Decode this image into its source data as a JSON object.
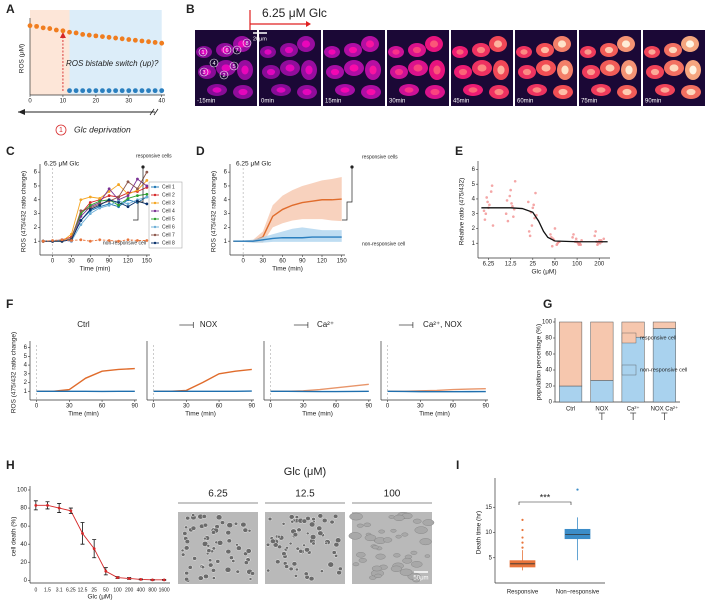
{
  "panel_labels": [
    "A",
    "B",
    "C",
    "D",
    "E",
    "F",
    "G",
    "H",
    "I"
  ],
  "timelapse": {
    "stimulus": "6.25 μM Glc",
    "scale_bar": "20μm",
    "frames": [
      "-15min",
      "0min",
      "15min",
      "30min",
      "45min",
      "60min",
      "75min",
      "90min"
    ],
    "cell_ids": [
      "1",
      "2",
      "3",
      "4",
      "5",
      "6",
      "7",
      "8"
    ]
  },
  "micrographs": {
    "axis_title": "Glc (μM)",
    "conditions": [
      "6.25",
      "12.5",
      "100"
    ],
    "scale_bar": "50μm"
  },
  "chart_data": [
    {
      "type": "line",
      "ylabel": "ROS (μM)",
      "markers": true,
      "annotations": [
        "ROS bistable switch (up)?",
        "Glc deprivation",
        "1"
      ],
      "regions": [
        {
          "from": 0,
          "to": 12,
          "color": "#fde6d8"
        },
        {
          "from": 12,
          "to": 40,
          "color": "#dcedf9"
        }
      ],
      "switch_x": 10,
      "x": [
        0,
        2,
        4,
        6,
        8,
        10,
        12,
        14,
        16,
        18,
        20,
        22,
        24,
        26,
        28,
        30,
        32,
        34,
        36,
        38,
        40
      ],
      "series": [
        {
          "color": "#f07d1f",
          "values": [
            0.95,
            0.94,
            0.92,
            0.91,
            0.89,
            0.88,
            0.86,
            0.85,
            0.83,
            0.82,
            0.81,
            0.8,
            0.79,
            0.78,
            0.77,
            0.76,
            0.75,
            0.74,
            0.73,
            0.72,
            0.71
          ]
        },
        {
          "color": "#2a7fbf",
          "values": [
            null,
            null,
            null,
            null,
            null,
            null,
            0.06,
            0.06,
            0.06,
            0.06,
            0.06,
            0.06,
            0.06,
            0.06,
            0.06,
            0.06,
            0.06,
            0.06,
            0.06,
            0.06,
            0.06
          ]
        }
      ],
      "xlim": [
        0,
        41
      ],
      "xticks": [
        0,
        10,
        20,
        30,
        40
      ],
      "ylim": [
        0,
        1
      ]
    },
    {
      "type": "line",
      "ylabel": "ROS (475/432 ratio change)",
      "xlabel": "Time (min)",
      "markers": true,
      "stimulus": 0,
      "annotations": [
        "6.25 μM Glc",
        "responsive cells",
        "non-responsive cell"
      ],
      "legend": "right",
      "x": [
        -15,
        0,
        15,
        30,
        45,
        60,
        75,
        90,
        105,
        120,
        135,
        150
      ],
      "series": [
        {
          "name": "Cell 1",
          "color": "#1f77b4",
          "values": [
            1,
            1,
            1,
            1.1,
            2.5,
            3.2,
            3.5,
            3.7,
            3.5,
            4.0,
            3.8,
            4.2
          ]
        },
        {
          "name": "Cell 2",
          "color": "#d62728",
          "values": [
            1,
            1,
            1.1,
            1.3,
            3.0,
            3.8,
            4.0,
            4.3,
            4.2,
            4.5,
            4.6,
            4.9
          ]
        },
        {
          "name": "Cell 3",
          "color": "#f5a623",
          "values": [
            1,
            1,
            1,
            1.5,
            4.0,
            4.2,
            4.1,
            4.6,
            5.1,
            4.4,
            4.7,
            5.4
          ]
        },
        {
          "name": "Cell 4",
          "color": "#7b3294",
          "values": [
            1,
            1,
            1.1,
            1.0,
            2.8,
            3.5,
            3.8,
            4.8,
            4.0,
            4.3,
            5.5,
            5.0
          ]
        },
        {
          "name": "Cell 5",
          "color": "#2ca02c",
          "values": [
            1,
            1,
            1,
            1.2,
            3.0,
            3.6,
            3.9,
            4.0,
            3.6,
            4.1,
            4.3,
            4.4
          ]
        },
        {
          "name": "Cell 6",
          "color": "#6baed6",
          "values": [
            1,
            1,
            1.1,
            1.0,
            2.2,
            3.0,
            3.4,
            3.6,
            3.9,
            3.7,
            4.0,
            4.2
          ]
        },
        {
          "name": "Cell 7",
          "color": "#8c564b",
          "values": [
            1,
            1,
            1.0,
            1.2,
            3.2,
            3.4,
            3.7,
            3.9,
            4.2,
            5.3,
            4.8,
            6.0
          ]
        },
        {
          "name": "Cell 8",
          "color": "#08306b",
          "values": [
            1,
            1,
            1,
            1.1,
            2.5,
            3.3,
            3.6,
            4.0,
            3.8,
            3.5,
            3.9,
            3.7
          ]
        },
        {
          "color": "#e8743b",
          "linestyle": "dashed",
          "values": [
            1,
            1.05,
            1.1,
            1.05,
            1.1,
            1.0,
            1.1,
            1.05,
            1.0,
            1.1,
            1.05,
            1.05
          ]
        }
      ],
      "xlim": [
        -20,
        155
      ],
      "xticks": [
        0,
        30,
        60,
        90,
        120,
        150
      ],
      "ylim": [
        0,
        6.3
      ],
      "yticks": [
        1,
        2,
        3,
        4,
        5,
        6
      ]
    },
    {
      "type": "line",
      "ylabel": "ROS (475/432 ratio change)",
      "xlabel": "Time (min)",
      "stimulus": 0,
      "annotations": [
        "6.25 μM Glc",
        "responsive cells",
        "non-responsive cell"
      ],
      "x": [
        -15,
        0,
        15,
        30,
        45,
        60,
        75,
        90,
        105,
        120,
        135,
        150
      ],
      "series": [
        {
          "color": "#e06c2c",
          "band_color": "#f6c3a8",
          "values": [
            1,
            1,
            1,
            1.3,
            2.8,
            3.3,
            3.6,
            3.8,
            3.9,
            4.0,
            4.0,
            4.05
          ],
          "upper": [
            1,
            1.05,
            1.1,
            1.7,
            3.6,
            4.3,
            4.7,
            5.0,
            5.2,
            5.4,
            5.5,
            5.65
          ],
          "lower": [
            1,
            0.95,
            0.9,
            0.9,
            2.0,
            2.3,
            2.5,
            2.6,
            2.6,
            2.6,
            2.5,
            2.45
          ]
        },
        {
          "color": "#2a7fbf",
          "band_color": "#a9d2ee",
          "values": [
            1,
            1,
            1,
            1.1,
            1.2,
            1.25,
            1.25,
            1.25,
            1.3,
            1.3,
            1.3,
            1.3
          ],
          "upper": [
            1,
            1.05,
            1.1,
            1.3,
            1.5,
            1.7,
            1.9,
            2.0,
            1.9,
            1.8,
            1.8,
            1.8
          ],
          "lower": [
            1,
            0.95,
            0.9,
            0.9,
            0.95,
            0.95,
            0.95,
            0.95,
            0.95,
            0.95,
            0.95,
            0.95
          ]
        }
      ],
      "xlim": [
        -20,
        155
      ],
      "xticks": [
        0,
        30,
        60,
        90,
        120,
        150
      ],
      "ylim": [
        0,
        6.3
      ],
      "yticks": [
        1,
        2,
        3,
        4,
        5,
        6
      ]
    },
    {
      "type": "scatter",
      "ylabel": "Relative ratio (475/432)",
      "xlabel": "Glc (μM)",
      "xscale": "log",
      "color": "#f08080",
      "x": [
        6.25,
        6.25,
        6.25,
        6.25,
        6.25,
        6.25,
        6.25,
        6.25,
        6.25,
        6.25,
        12.5,
        12.5,
        12.5,
        12.5,
        12.5,
        12.5,
        12.5,
        12.5,
        12.5,
        12.5,
        25,
        25,
        25,
        25,
        25,
        25,
        25,
        25,
        25,
        25,
        50,
        50,
        50,
        50,
        50,
        50,
        50,
        50,
        50,
        50,
        100,
        100,
        100,
        100,
        100,
        100,
        100,
        100,
        100,
        100,
        200,
        200,
        200,
        200,
        200,
        200,
        200,
        200,
        200,
        200
      ],
      "values": [
        3.2,
        3.8,
        4.5,
        2.6,
        3.4,
        4.9,
        3.0,
        3.6,
        2.2,
        4.1,
        3.5,
        3.0,
        4.2,
        2.8,
        3.9,
        4.6,
        3.3,
        2.5,
        3.7,
        5.2,
        3.1,
        2.7,
        3.8,
        2.2,
        4.4,
        1.8,
        3.4,
        2.9,
        1.5,
        3.6,
        1.1,
        1.3,
        0.9,
        1.6,
        1.2,
        1.0,
        1.4,
        2.0,
        1.1,
        0.8,
        1.0,
        1.2,
        1.1,
        0.9,
        1.4,
        1.3,
        1.0,
        1.6,
        1.1,
        0.9,
        1.1,
        1.0,
        1.3,
        0.9,
        1.2,
        1.5,
        1.0,
        1.1,
        1.8,
        1.2
      ],
      "fit": {
        "color": "#111111",
        "x": [
          5,
          6.25,
          12.5,
          18,
          25,
          30,
          35,
          40,
          50,
          100,
          200,
          260
        ],
        "values": [
          3.4,
          3.4,
          3.4,
          3.35,
          3.1,
          2.5,
          1.8,
          1.4,
          1.15,
          1.1,
          1.1,
          1.1
        ]
      },
      "xlim": [
        4.5,
        280
      ],
      "xticks": [
        6.25,
        12.5,
        25,
        50,
        100,
        200
      ],
      "ylim": [
        0,
        6.3
      ],
      "yticks": [
        1,
        2,
        3,
        4,
        5,
        6
      ]
    },
    {
      "type": "line",
      "title": "Ctrl",
      "inhibitor": false,
      "ylabel": "ROS (475/432 ratio change)",
      "xlabel": "Time (min)",
      "stimulus": 0,
      "x": [
        0,
        15,
        30,
        45,
        60,
        75,
        90
      ],
      "series": [
        {
          "color": "#e06c2c",
          "values": [
            1,
            1,
            1.2,
            2.5,
            3.3,
            3.5,
            3.6
          ]
        },
        {
          "color": "#1f6fae",
          "values": [
            1,
            1,
            1,
            1,
            0.98,
            1,
            1
          ]
        }
      ],
      "xlim": [
        -6,
        92
      ],
      "xticks": [
        0,
        30,
        60,
        90
      ],
      "ylim": [
        0,
        6.3
      ],
      "yticks": [
        1,
        2,
        3,
        4,
        5,
        6
      ]
    },
    {
      "type": "line",
      "title": "NOX",
      "inhibitor": true,
      "xlabel": "Time (min)",
      "stimulus": 0,
      "x": [
        0,
        15,
        30,
        45,
        60,
        75,
        90
      ],
      "series": [
        {
          "color": "#e06c2c",
          "values": [
            1,
            1,
            1.1,
            2.0,
            3.0,
            3.3,
            3.5
          ]
        },
        {
          "color": "#1f6fae",
          "values": [
            1,
            1,
            1,
            1,
            1,
            1,
            1.02
          ]
        }
      ],
      "xlim": [
        -6,
        92
      ],
      "xticks": [
        0,
        30,
        60,
        90
      ],
      "ylim": [
        0,
        6.3
      ]
    },
    {
      "type": "line",
      "title": "Ca²⁺",
      "inhibitor": true,
      "xlabel": "Time (min)",
      "stimulus": 0,
      "x": [
        0,
        15,
        30,
        45,
        60,
        75,
        90
      ],
      "series": [
        {
          "color": "#e8956a",
          "values": [
            1,
            1,
            1.05,
            1.2,
            1.4,
            1.6,
            1.8
          ]
        },
        {
          "color": "#1f6fae",
          "values": [
            1,
            1,
            0.98,
            0.97,
            0.97,
            0.98,
            1
          ]
        }
      ],
      "xlim": [
        -6,
        92
      ],
      "xticks": [
        0,
        30,
        60,
        90
      ],
      "ylim": [
        0,
        6.3
      ]
    },
    {
      "type": "line",
      "title": "Ca²⁺, NOX",
      "inhibitor": true,
      "xlabel": "Time (min)",
      "stimulus": 0,
      "x": [
        0,
        15,
        30,
        45,
        60,
        75,
        90
      ],
      "series": [
        {
          "color": "#e8956a",
          "values": [
            1,
            1,
            1.05,
            1.1,
            1.2,
            1.25,
            1.3
          ]
        },
        {
          "color": "#1f6fae",
          "values": [
            1,
            0.98,
            0.96,
            0.95,
            0.95,
            0.96,
            0.97
          ]
        }
      ],
      "xlim": [
        -6,
        92
      ],
      "xticks": [
        0,
        30,
        60,
        90
      ],
      "ylim": [
        0,
        6.3
      ]
    },
    {
      "type": "bar",
      "stacked": true,
      "ylabel": "population percentage (%)",
      "legend": "right",
      "categories": [
        "Ctrl",
        "NOX",
        "Ca²⁺",
        "NOX Ca²⁺"
      ],
      "inhibited": [
        false,
        true,
        true,
        true
      ],
      "series": [
        {
          "name": "non-responsive cell",
          "color": "#a9d2ee",
          "values": [
            20,
            27,
            81,
            92
          ]
        },
        {
          "name": "responsive cell",
          "color": "#f6c7ae",
          "values": [
            80,
            73,
            19,
            8
          ]
        }
      ],
      "ylim": [
        0,
        100
      ],
      "yticks": [
        0,
        20,
        40,
        60,
        80,
        100
      ]
    },
    {
      "type": "line",
      "ylabel": "cell death (%)",
      "xlabel": "Glc (μM)",
      "markers": true,
      "categories": [
        "0",
        "1.5",
        "3.1",
        "6.25",
        "12.5",
        "25",
        "50",
        "100",
        "200",
        "400",
        "800",
        "1600"
      ],
      "series": [
        {
          "color": "#d62728",
          "values": [
            83,
            83,
            80,
            77,
            52,
            35,
            10,
            3,
            2,
            1,
            0.5,
            0.5
          ],
          "errors": [
            5,
            4,
            5,
            3,
            12,
            10,
            4,
            1,
            1,
            0.5,
            0.5,
            0.5
          ]
        }
      ],
      "ylim": [
        -3,
        100
      ],
      "yticks": [
        0,
        20,
        40,
        60,
        80,
        100
      ]
    },
    {
      "type": "box",
      "ylabel": "Death time (hr)",
      "annotations": [
        "***"
      ],
      "categories": [
        "Responsive",
        "Non−responsive"
      ],
      "boxes": [
        {
          "color": "#e8743b",
          "whislo": 2.5,
          "q1": 3.2,
          "median": 3.8,
          "q3": 4.4,
          "whishi": 6.5,
          "fliers": [
            7,
            8,
            9,
            10.5,
            12.5
          ]
        },
        {
          "color": "#3c8dc8",
          "whislo": 4.5,
          "q1": 8.8,
          "median": 9.6,
          "q3": 10.6,
          "whishi": 13,
          "fliers": [
            18.5
          ]
        }
      ],
      "ylim": [
        0,
        20
      ],
      "yticks": [
        5,
        10,
        15
      ]
    }
  ]
}
